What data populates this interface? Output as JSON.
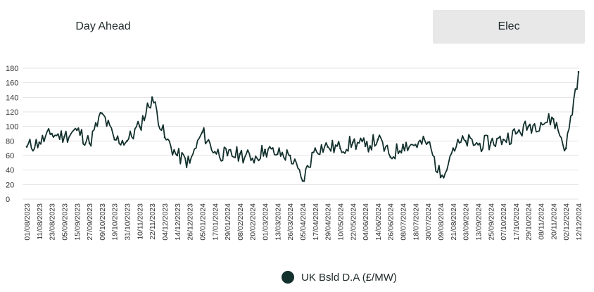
{
  "tabs": {
    "left_label": "Day Ahead",
    "right_label": "Elec"
  },
  "chart_data": {
    "type": "line",
    "title": "",
    "xlabel": "",
    "ylabel": "",
    "ylim": [
      0,
      180
    ],
    "yticks": [
      0,
      20,
      40,
      60,
      80,
      100,
      120,
      140,
      160,
      180
    ],
    "grid": true,
    "legend_position": "bottom-center",
    "color": "#12302c",
    "x_tick_labels": [
      "01/08/2023",
      "11/08/2023",
      "23/08/2023",
      "05/09/2023",
      "15/09/2023",
      "27/09/2023",
      "09/10/2023",
      "19/10/2023",
      "31/10/2023",
      "10/11/2023",
      "22/11/2023",
      "04/12/2023",
      "14/12/2023",
      "26/12/2023",
      "05/01/2024",
      "17/01/2024",
      "29/01/2024",
      "08/02/2024",
      "20/02/2024",
      "01/03/2024",
      "13/03/2024",
      "26/03/2024",
      "05/04/2024",
      "17/04/2024",
      "29/04/2024",
      "10/05/2024",
      "22/05/2024",
      "04/06/2024",
      "14/06/2024",
      "26/06/2024",
      "08/07/2024",
      "18/07/2024",
      "30/07/2024",
      "09/08/2024",
      "21/08/2024",
      "03/09/2024",
      "13/09/2024",
      "25/09/2024",
      "07/10/2024",
      "17/10/2024",
      "29/10/2024",
      "08/11/2024",
      "20/11/2024",
      "02/12/2024",
      "12/12/2024"
    ],
    "series": [
      {
        "name": "UK Bsld D.A (£/MW)",
        "x": [
          "01/08/2023",
          "11/08/2023",
          "23/08/2023",
          "05/09/2023",
          "15/09/2023",
          "27/09/2023",
          "09/10/2023",
          "19/10/2023",
          "31/10/2023",
          "10/11/2023",
          "22/11/2023",
          "04/12/2023",
          "14/12/2023",
          "26/12/2023",
          "05/01/2024",
          "17/01/2024",
          "29/01/2024",
          "08/02/2024",
          "20/02/2024",
          "01/03/2024",
          "13/03/2024",
          "26/03/2024",
          "05/04/2024",
          "17/04/2024",
          "29/04/2024",
          "10/05/2024",
          "22/05/2024",
          "04/06/2024",
          "14/06/2024",
          "26/06/2024",
          "08/07/2024",
          "18/07/2024",
          "30/07/2024",
          "09/08/2024",
          "21/08/2024",
          "03/09/2024",
          "13/09/2024",
          "25/09/2024",
          "07/10/2024",
          "17/10/2024",
          "29/10/2024",
          "08/11/2024",
          "20/11/2024",
          "02/12/2024",
          "12/12/2024"
        ],
        "values": [
          72,
          78,
          90,
          86,
          95,
          77,
          118,
          82,
          80,
          100,
          140,
          85,
          60,
          50,
          92,
          65,
          60,
          62,
          56,
          68,
          62,
          60,
          25,
          70,
          72,
          70,
          78,
          73,
          82,
          58,
          75,
          75,
          78,
          30,
          70,
          80,
          75,
          78,
          82,
          90,
          100,
          105,
          110,
          70,
          175
        ]
      }
    ]
  }
}
